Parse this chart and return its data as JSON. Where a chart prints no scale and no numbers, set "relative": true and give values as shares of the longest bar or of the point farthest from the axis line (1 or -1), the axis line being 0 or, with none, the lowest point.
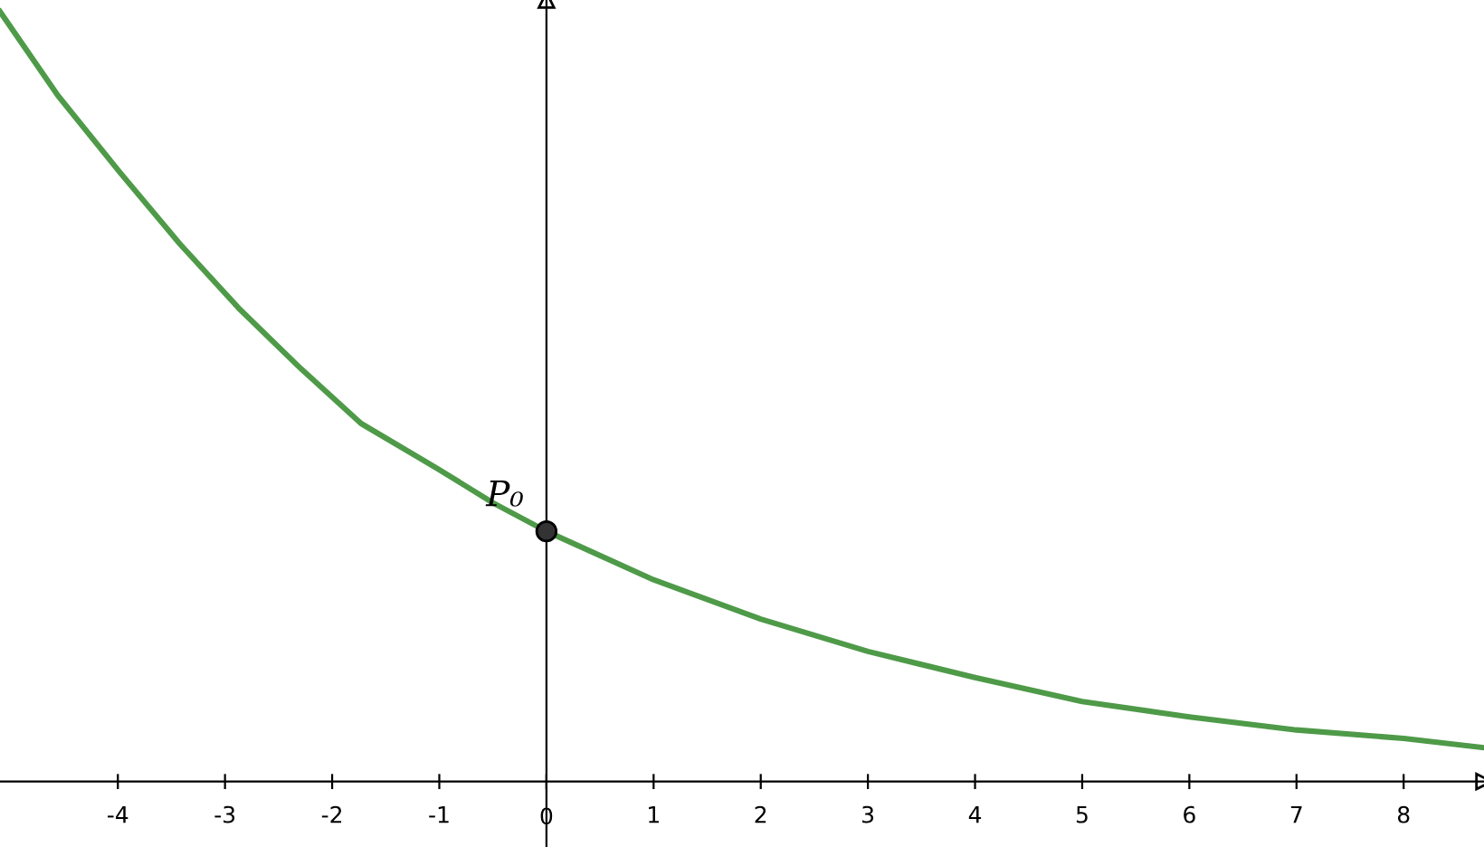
{
  "chart_data": {
    "type": "line",
    "relative": true,
    "tick_labels": "x",
    "legend": false,
    "xlim": [
      -5.1,
      8.75
    ],
    "xticks": [
      -4,
      -3,
      -2,
      -1,
      0,
      1,
      2,
      3,
      4,
      5,
      6,
      7,
      8
    ],
    "series": [
      {
        "color": "#4e9a48",
        "marker": "none",
        "line_style": "solid",
        "x": [
          -5.1,
          -4.56,
          -3.98,
          -3.42,
          -2.86,
          -2.29,
          -1.73,
          -1.0,
          -0.5,
          0,
          1,
          2,
          3,
          4,
          5,
          6,
          7,
          8,
          8.75
        ],
        "values": [
          1.0,
          0.891,
          0.791,
          0.698,
          0.613,
          0.536,
          0.465,
          0.405,
          0.362,
          0.325,
          0.262,
          0.211,
          0.169,
          0.135,
          0.104,
          0.084,
          0.067,
          0.056,
          0.044
        ]
      },
      {
        "type": "scatter",
        "color": "#333333",
        "marker": "circle",
        "x": [
          0
        ],
        "values": [
          0.325
        ]
      }
    ],
    "annotations": [
      {
        "text": "P₀",
        "x": 0,
        "y": 0.325
      }
    ]
  }
}
